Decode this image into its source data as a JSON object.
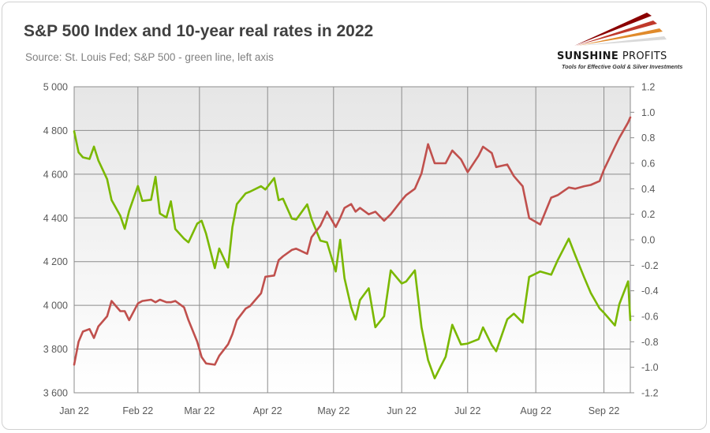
{
  "title": "S&P 500 Index and 10-year real rates in 2022",
  "subtitle": "Source: St. Louis Fed; S&P 500 - green line, left axis",
  "logo": {
    "name": "SUNSHINE PROFITS",
    "name_part1": "SUNSHINE",
    "name_part2": "PROFITS",
    "tagline": "Tools for Effective Gold & Silver Investments"
  },
  "colors": {
    "sp500": "#7ab800",
    "real_rate": "#c0504d",
    "plot_bg_top": "#e6e6e6",
    "plot_bg_bottom": "#ffffff",
    "grid": "#8c8c8c"
  },
  "chart_data": {
    "type": "line",
    "title": "S&P 500 Index and 10-year real rates in 2022",
    "subtitle": "Source: St. Louis Fed; S&P 500 - green line, left axis",
    "x_ticks": [
      "Jan 22",
      "Feb 22",
      "Mar 22",
      "Apr 22",
      "May 22",
      "Jun 22",
      "Jul 22",
      "Aug 22",
      "Sep 22"
    ],
    "x_range": [
      "2022-01-03",
      "2022-09-13"
    ],
    "ylim_left": [
      3600,
      5000
    ],
    "yticks_left": [
      "3 600",
      "3 800",
      "4 000",
      "4 200",
      "4 400",
      "4 600",
      "4 800",
      "5 000"
    ],
    "ylim_right": [
      -1.2,
      1.2
    ],
    "yticks_right": [
      "-1.2",
      "-1.0",
      "-0.8",
      "-0.6",
      "-0.4",
      "-0.2",
      "0.0",
      "0.2",
      "0.4",
      "0.6",
      "0.8",
      "1.0",
      "1.2"
    ],
    "grid": true,
    "legend": "none",
    "series": [
      {
        "axis": "left",
        "color": "#7ab800",
        "x": [
          "2022-01-03",
          "2022-01-05",
          "2022-01-07",
          "2022-01-10",
          "2022-01-12",
          "2022-01-14",
          "2022-01-18",
          "2022-01-20",
          "2022-01-24",
          "2022-01-26",
          "2022-01-28",
          "2022-02-01",
          "2022-02-03",
          "2022-02-07",
          "2022-02-09",
          "2022-02-11",
          "2022-02-14",
          "2022-02-16",
          "2022-02-18",
          "2022-02-22",
          "2022-02-24",
          "2022-02-28",
          "2022-03-02",
          "2022-03-04",
          "2022-03-08",
          "2022-03-10",
          "2022-03-14",
          "2022-03-16",
          "2022-03-18",
          "2022-03-22",
          "2022-03-24",
          "2022-03-29",
          "2022-03-31",
          "2022-04-04",
          "2022-04-06",
          "2022-04-08",
          "2022-04-12",
          "2022-04-14",
          "2022-04-19",
          "2022-04-21",
          "2022-04-25",
          "2022-04-28",
          "2022-05-02",
          "2022-05-04",
          "2022-05-06",
          "2022-05-09",
          "2022-05-11",
          "2022-05-13",
          "2022-05-17",
          "2022-05-20",
          "2022-05-24",
          "2022-05-27",
          "2022-06-01",
          "2022-06-03",
          "2022-06-07",
          "2022-06-10",
          "2022-06-13",
          "2022-06-16",
          "2022-06-21",
          "2022-06-24",
          "2022-06-28",
          "2022-07-01",
          "2022-07-06",
          "2022-07-08",
          "2022-07-12",
          "2022-07-14",
          "2022-07-19",
          "2022-07-22",
          "2022-07-26",
          "2022-07-29",
          "2022-08-03",
          "2022-08-08",
          "2022-08-11",
          "2022-08-16",
          "2022-08-19",
          "2022-08-23",
          "2022-08-26",
          "2022-08-30",
          "2022-09-01",
          "2022-09-06",
          "2022-09-08",
          "2022-09-12",
          "2022-09-13"
        ],
        "values": [
          4796,
          4700,
          4677,
          4670,
          4726,
          4663,
          4577,
          4482,
          4410,
          4350,
          4432,
          4546,
          4478,
          4483,
          4588,
          4420,
          4402,
          4476,
          4349,
          4305,
          4288,
          4374,
          4387,
          4328,
          4170,
          4260,
          4173,
          4358,
          4463,
          4512,
          4520,
          4545,
          4530,
          4582,
          4481,
          4488,
          4397,
          4392,
          4462,
          4394,
          4296,
          4288,
          4155,
          4300,
          4124,
          3991,
          3935,
          4024,
          4078,
          3900,
          3950,
          4160,
          4100,
          4109,
          4160,
          3900,
          3750,
          3666,
          3765,
          3911,
          3821,
          3825,
          3845,
          3899,
          3818,
          3790,
          3936,
          3962,
          3921,
          4130,
          4155,
          4140,
          4207,
          4305,
          4228,
          4128,
          4057,
          3986,
          3966,
          3908,
          4006,
          4110,
          3932
        ]
      },
      {
        "axis": "right",
        "color": "#c0504d",
        "x": [
          "2022-01-03",
          "2022-01-05",
          "2022-01-07",
          "2022-01-10",
          "2022-01-12",
          "2022-01-14",
          "2022-01-18",
          "2022-01-20",
          "2022-01-24",
          "2022-01-26",
          "2022-01-28",
          "2022-02-01",
          "2022-02-03",
          "2022-02-07",
          "2022-02-09",
          "2022-02-11",
          "2022-02-14",
          "2022-02-16",
          "2022-02-18",
          "2022-02-22",
          "2022-02-24",
          "2022-02-28",
          "2022-03-02",
          "2022-03-04",
          "2022-03-08",
          "2022-03-10",
          "2022-03-14",
          "2022-03-16",
          "2022-03-18",
          "2022-03-22",
          "2022-03-24",
          "2022-03-29",
          "2022-03-31",
          "2022-04-04",
          "2022-04-06",
          "2022-04-08",
          "2022-04-12",
          "2022-04-14",
          "2022-04-19",
          "2022-04-21",
          "2022-04-25",
          "2022-04-28",
          "2022-05-02",
          "2022-05-04",
          "2022-05-06",
          "2022-05-09",
          "2022-05-11",
          "2022-05-13",
          "2022-05-17",
          "2022-05-20",
          "2022-05-24",
          "2022-05-27",
          "2022-06-01",
          "2022-06-03",
          "2022-06-07",
          "2022-06-10",
          "2022-06-13",
          "2022-06-16",
          "2022-06-21",
          "2022-06-24",
          "2022-06-28",
          "2022-07-01",
          "2022-07-06",
          "2022-07-08",
          "2022-07-12",
          "2022-07-14",
          "2022-07-19",
          "2022-07-22",
          "2022-07-26",
          "2022-07-29",
          "2022-08-03",
          "2022-08-08",
          "2022-08-11",
          "2022-08-16",
          "2022-08-19",
          "2022-08-23",
          "2022-08-26",
          "2022-08-30",
          "2022-09-01",
          "2022-09-06",
          "2022-09-08",
          "2022-09-12",
          "2022-09-13"
        ],
        "values": [
          -0.98,
          -0.8,
          -0.72,
          -0.7,
          -0.77,
          -0.68,
          -0.6,
          -0.48,
          -0.56,
          -0.56,
          -0.63,
          -0.5,
          -0.48,
          -0.47,
          -0.49,
          -0.47,
          -0.49,
          -0.49,
          -0.48,
          -0.53,
          -0.63,
          -0.8,
          -0.92,
          -0.97,
          -0.98,
          -0.91,
          -0.82,
          -0.74,
          -0.63,
          -0.54,
          -0.52,
          -0.42,
          -0.29,
          -0.28,
          -0.16,
          -0.13,
          -0.08,
          -0.07,
          -0.11,
          0.02,
          0.11,
          0.22,
          0.1,
          0.17,
          0.25,
          0.28,
          0.22,
          0.25,
          0.2,
          0.22,
          0.15,
          0.2,
          0.31,
          0.35,
          0.4,
          0.52,
          0.75,
          0.6,
          0.6,
          0.7,
          0.63,
          0.53,
          0.66,
          0.73,
          0.68,
          0.57,
          0.59,
          0.5,
          0.42,
          0.17,
          0.12,
          0.33,
          0.35,
          0.41,
          0.4,
          0.42,
          0.43,
          0.46,
          0.55,
          0.73,
          0.8,
          0.92,
          0.96
        ]
      }
    ]
  }
}
